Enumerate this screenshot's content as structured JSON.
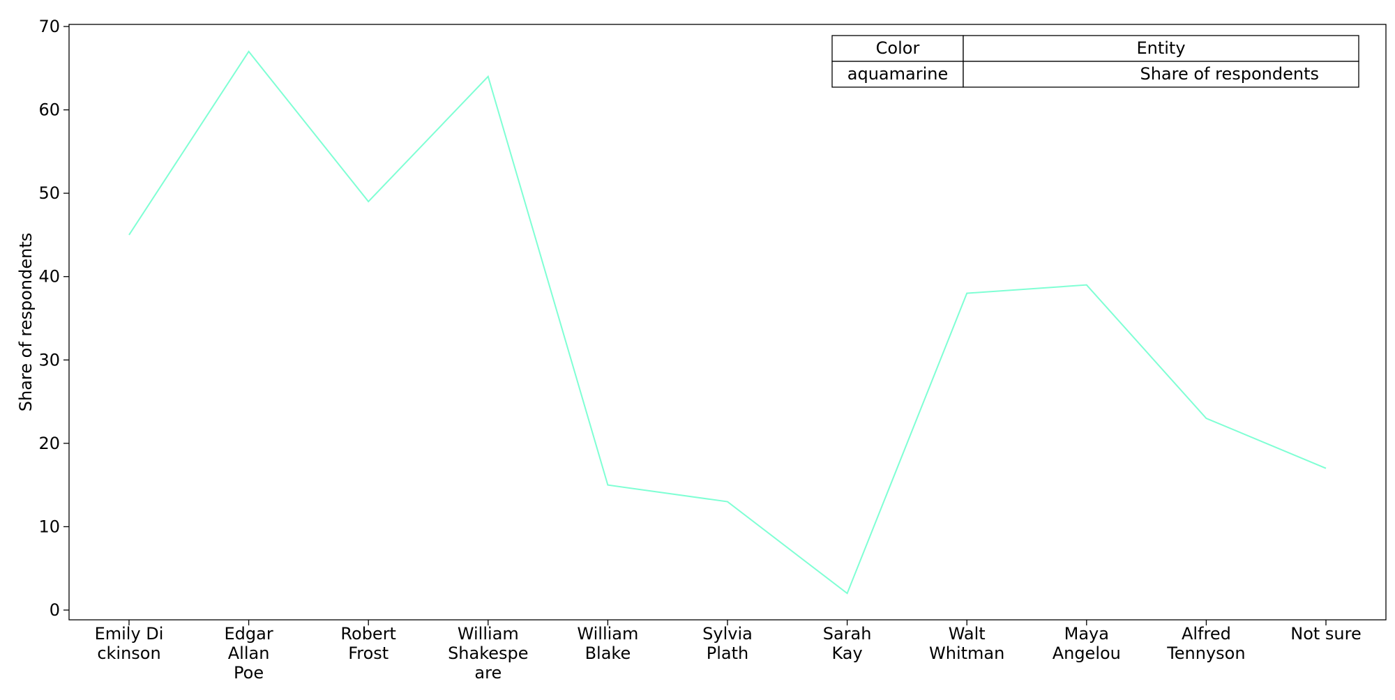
{
  "chart_data": {
    "type": "line",
    "categories": [
      "Emily Dickinson",
      "Edgar Allan Poe",
      "Robert Frost",
      "William Shakespeare",
      "William Blake",
      "Sylvia Plath",
      "Sarah Kay",
      "Walt Whitman",
      "Maya Angelou",
      "Alfred Tennyson",
      "Not sure"
    ],
    "category_tick_lines": [
      [
        "Emily Di",
        "ckinson"
      ],
      [
        "Edgar",
        "Allan",
        "Poe"
      ],
      [
        "Robert",
        "Frost"
      ],
      [
        "William",
        "Shakespe",
        "are"
      ],
      [
        "William",
        "Blake"
      ],
      [
        "Sylvia",
        "Plath"
      ],
      [
        "Sarah",
        "Kay"
      ],
      [
        "Walt",
        "Whitman"
      ],
      [
        "Maya",
        "Angelou"
      ],
      [
        "Alfred",
        "Tennyson"
      ],
      [
        "Not sure"
      ]
    ],
    "series": [
      {
        "color": "#7fffd4",
        "values": [
          45,
          67,
          49,
          64,
          15,
          13,
          2,
          38,
          39,
          23,
          17
        ]
      }
    ],
    "ylabel": "Share of respondents",
    "xlabel": "",
    "ylim": [
      0,
      70
    ],
    "yticks": [
      0,
      10,
      20,
      30,
      40,
      50,
      60,
      70
    ],
    "grid": false,
    "legend": {
      "placement": "top-right",
      "headers": [
        "Color",
        "Entity"
      ],
      "rows": [
        [
          "aquamarine",
          "Share of respondents"
        ]
      ]
    }
  }
}
